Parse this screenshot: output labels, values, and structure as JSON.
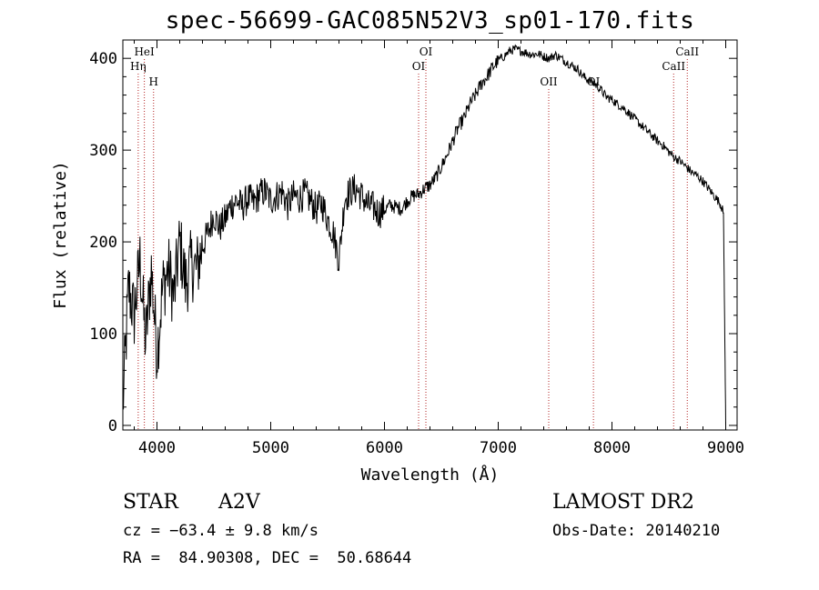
{
  "chart_data": {
    "type": "line",
    "title": "spec-56699-GAC085N52V3_sp01-170.fits",
    "xlabel": "Wavelength (Å)",
    "ylabel": "Flux (relative)",
    "xlim": [
      3700,
      9100
    ],
    "ylim": [
      -5,
      420
    ],
    "xticks": [
      4000,
      5000,
      6000,
      7000,
      8000,
      9000
    ],
    "yticks": [
      0,
      100,
      200,
      300,
      400
    ],
    "series": [
      {
        "name": "flux",
        "x": [
          3700,
          3750,
          3800,
          3850,
          3900,
          3950,
          4000,
          4050,
          4100,
          4150,
          4200,
          4250,
          4300,
          4350,
          4400,
          4450,
          4500,
          4550,
          4600,
          4650,
          4700,
          4750,
          4800,
          4850,
          4900,
          4950,
          5000,
          5050,
          5100,
          5150,
          5200,
          5250,
          5300,
          5350,
          5400,
          5450,
          5500,
          5550,
          5600,
          5650,
          5700,
          5750,
          5800,
          5850,
          5900,
          5950,
          6000,
          6050,
          6100,
          6150,
          6200,
          6250,
          6300,
          6350,
          6400,
          6450,
          6500,
          6550,
          6600,
          6650,
          6700,
          6750,
          6800,
          6850,
          6900,
          6950,
          7000,
          7050,
          7100,
          7150,
          7200,
          7250,
          7300,
          7350,
          7400,
          7450,
          7500,
          7550,
          7600,
          7650,
          7700,
          7750,
          7800,
          7850,
          7900,
          7950,
          8000,
          8050,
          8100,
          8150,
          8200,
          8250,
          8300,
          8350,
          8400,
          8450,
          8500,
          8550,
          8600,
          8650,
          8700,
          8750,
          8800,
          8850,
          8900,
          8950,
          8980,
          9000
        ],
        "y": [
          20,
          150,
          120,
          180,
          90,
          170,
          80,
          150,
          170,
          140,
          200,
          155,
          175,
          170,
          195,
          210,
          230,
          215,
          225,
          240,
          245,
          238,
          248,
          242,
          252,
          255,
          245,
          250,
          255,
          240,
          250,
          248,
          252,
          245,
          235,
          242,
          225,
          210,
          180,
          248,
          255,
          258,
          250,
          240,
          238,
          232,
          235,
          240,
          238,
          236,
          245,
          250,
          252,
          258,
          262,
          270,
          282,
          295,
          310,
          325,
          335,
          350,
          360,
          372,
          380,
          390,
          398,
          402,
          408,
          410,
          408,
          406,
          404,
          405,
          402,
          400,
          404,
          400,
          396,
          392,
          388,
          380,
          376,
          372,
          366,
          358,
          355,
          350,
          346,
          340,
          334,
          328,
          322,
          316,
          310,
          305,
          298,
          292,
          288,
          282,
          276,
          272,
          266,
          258,
          250,
          242,
          232,
          0
        ]
      }
    ],
    "line_markers": [
      {
        "label": "HeI",
        "x": 3889,
        "level": "top"
      },
      {
        "label": "Hη",
        "x": 3835,
        "level": "second"
      },
      {
        "label": "H",
        "x": 3970,
        "level": "third"
      },
      {
        "label": "OI",
        "x": 6364,
        "level": "top"
      },
      {
        "label": "OI",
        "x": 6300,
        "level": "second"
      },
      {
        "label": "OII",
        "x": 7444,
        "level": "third"
      },
      {
        "label": "OI",
        "x": 7837,
        "level": "third"
      },
      {
        "label": "CaII",
        "x": 8662,
        "level": "top"
      },
      {
        "label": "CaII",
        "x": 8542,
        "level": "second"
      }
    ]
  },
  "info": {
    "class_label": "STAR",
    "subclass": "A2V",
    "survey": "LAMOST DR2",
    "cz": "cz = −63.4 ± 9.8 km/s",
    "obs_date": "Obs-Date: 20140210",
    "coords": "RA =  84.90308, DEC =  50.68644"
  },
  "colors": {
    "spectrum": "#000000",
    "marker_line": "#b22222",
    "axis": "#000000"
  }
}
